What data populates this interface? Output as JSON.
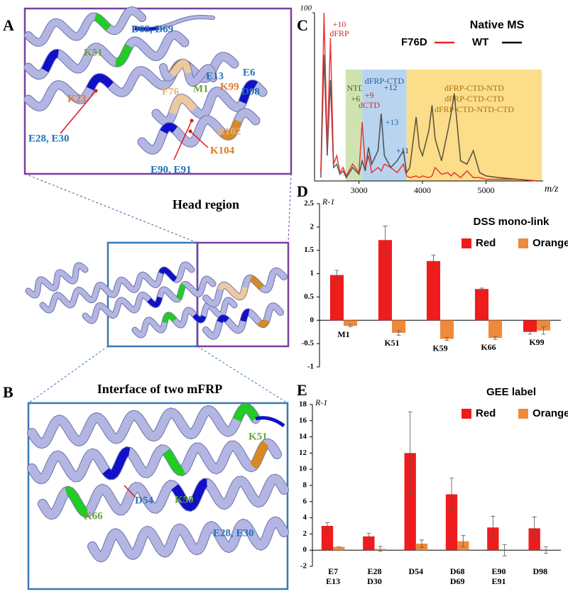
{
  "panel_labels": [
    "A",
    "B",
    "C",
    "D",
    "E"
  ],
  "structure_a": {
    "labels": [
      {
        "text": "D68, D69",
        "color": "#2272b8"
      },
      {
        "text": "K51",
        "color": "#6aa33a"
      },
      {
        "text": "K23",
        "color": "#e07b20"
      },
      {
        "text": "F76",
        "color": "#e8b27a"
      },
      {
        "text": "M1",
        "color": "#6aa33a"
      },
      {
        "text": "E13",
        "color": "#2272b8"
      },
      {
        "text": "E6",
        "color": "#2272b8"
      },
      {
        "text": "K99",
        "color": "#e07b20"
      },
      {
        "text": "D98",
        "color": "#2272b8"
      },
      {
        "text": "E28, E30",
        "color": "#2272b8"
      },
      {
        "text": "R102",
        "color": "#e8b27a"
      },
      {
        "text": "K104",
        "color": "#e07b20"
      },
      {
        "text": "E90, E91",
        "color": "#2272b8"
      }
    ]
  },
  "caption_head": "Head region",
  "structure_b": {
    "title": "Interface of two mFRP",
    "labels": [
      {
        "text": "K51",
        "color": "#6aa33a"
      },
      {
        "text": "D54",
        "color": "#2272b8"
      },
      {
        "text": "K59",
        "color": "#6aa33a"
      },
      {
        "text": "K66",
        "color": "#6aa33a"
      },
      {
        "text": "E28, E30",
        "color": "#2272b8"
      }
    ]
  },
  "chart_data": [
    {
      "type": "line",
      "title": "Native MS",
      "x": [
        2400,
        2450,
        2500,
        2550,
        2600,
        2650,
        2700,
        2750,
        2800,
        2900,
        3000,
        3050,
        3100,
        3150,
        3200,
        3300,
        3350,
        3400,
        3500,
        3600,
        3700,
        3750,
        3800,
        3900,
        3950,
        4000,
        4100,
        4150,
        4200,
        4300,
        4400,
        4450,
        4500,
        4600,
        4700,
        4800,
        4900,
        5000,
        5200,
        5500,
        5800
      ],
      "series": [
        {
          "name": "F76D",
          "color": "#e8262a",
          "values": [
            5,
            100,
            20,
            85,
            10,
            15,
            5,
            8,
            3,
            10,
            5,
            35,
            8,
            15,
            5,
            8,
            6,
            10,
            8,
            5,
            10,
            3,
            2,
            3,
            2,
            3,
            2,
            3,
            8,
            4,
            5,
            3,
            5,
            2,
            6,
            2,
            2,
            1,
            1,
            1,
            0
          ]
        },
        {
          "name": "WT",
          "color": "#222222",
          "values": [
            2,
            75,
            15,
            60,
            8,
            10,
            4,
            6,
            2,
            8,
            4,
            12,
            6,
            20,
            10,
            18,
            40,
            15,
            8,
            12,
            18,
            5,
            8,
            38,
            20,
            15,
            30,
            45,
            25,
            12,
            30,
            40,
            52,
            12,
            10,
            18,
            5,
            3,
            2,
            1,
            0
          ]
        }
      ],
      "xlim": [
        2300,
        5900
      ],
      "xticks": [
        3000,
        4000,
        5000
      ],
      "ylim": [
        0,
        100
      ],
      "yticks": [
        100
      ],
      "x_label": "m/z",
      "regions": [
        {
          "labels": [
            "NTD",
            "+6"
          ],
          "range": [
            2790,
            3050
          ],
          "color": "#cfe3b0",
          "text_color": "#3c6a2a"
        },
        {
          "labels": [
            "dFRP-CTD"
          ],
          "range": [
            3050,
            3750
          ],
          "color": "#b8d4ee",
          "text_color": "#2a5aa0"
        },
        {
          "labels": [
            "dFRP-CTD-NTD",
            "dFRP-CTD-CTD",
            "dFRP-CTD-NTD-CTD"
          ],
          "range": [
            3750,
            5880
          ],
          "color": "#fbdd8a",
          "text_color": "#a87410"
        }
      ],
      "annotations": [
        {
          "text": "+10",
          "color": "#d42a2a"
        },
        {
          "text": "dFRP",
          "color": "#d42a2a"
        },
        {
          "text": "+9",
          "color": "#d42a2a"
        },
        {
          "text": "dCTD",
          "color": "#d42a2a"
        },
        {
          "text": "+12",
          "color": "#2a4a80"
        },
        {
          "text": "+13",
          "color": "#2a6ab0"
        },
        {
          "text": "+11",
          "color": "#2a4a80"
        }
      ]
    },
    {
      "type": "bar",
      "title": "DSS mono-link",
      "y_label": "R-1",
      "categories": [
        "M1",
        "K51",
        "K59",
        "K66",
        "K99"
      ],
      "series": [
        {
          "name": "Red",
          "color": "#ee1c1c",
          "values": [
            0.97,
            1.72,
            1.27,
            0.67,
            -0.25
          ],
          "errors": [
            0.1,
            0.3,
            0.13,
            0.02,
            0.05
          ]
        },
        {
          "name": "Orange",
          "color": "#ef8a3a",
          "values": [
            -0.12,
            -0.27,
            -0.4,
            -0.38,
            -0.22
          ],
          "errors": [
            0.02,
            0.05,
            0.03,
            0.03,
            0.08
          ]
        }
      ],
      "ylim": [
        -1,
        2.5
      ],
      "yticks": [
        -1,
        -0.5,
        0,
        0.5,
        1,
        1.5,
        2,
        2.5
      ]
    },
    {
      "type": "bar",
      "title": "GEE label",
      "y_label": "R-1",
      "categories": [
        [
          "E7",
          "E13"
        ],
        [
          "E28",
          "D30"
        ],
        [
          "D54"
        ],
        [
          "D68",
          "D69"
        ],
        [
          "E90",
          "E91"
        ],
        [
          "D98"
        ]
      ],
      "series": [
        {
          "name": "Red",
          "color": "#ee1c1c",
          "values": [
            3.0,
            1.7,
            12.0,
            6.9,
            2.8,
            2.7
          ],
          "errors": [
            0.4,
            0.4,
            5.1,
            2.0,
            1.4,
            1.4
          ]
        },
        {
          "name": "Orange",
          "color": "#ef8a3a",
          "values": [
            0.4,
            0.15,
            0.8,
            1.1,
            0,
            0
          ],
          "errors": [
            0,
            0.3,
            0.45,
            0.7,
            0.7,
            0.4
          ]
        }
      ],
      "ylim": [
        -2,
        18
      ],
      "yticks": [
        -2,
        0,
        2,
        4,
        6,
        8,
        10,
        12,
        14,
        16,
        18
      ]
    }
  ]
}
